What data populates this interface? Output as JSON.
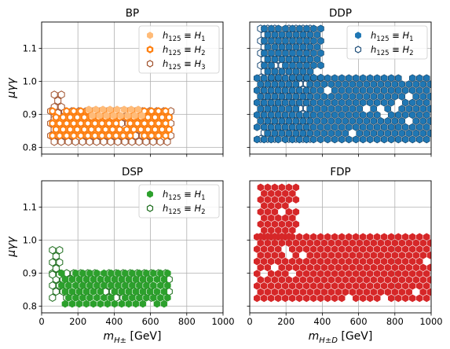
{
  "chart_data": [
    {
      "type": "scatter",
      "title": "BP",
      "xlabel": "",
      "ylabel": "μγγ",
      "xlim": [
        0,
        1000
      ],
      "ylim": [
        0.78,
        1.18
      ],
      "xticks": [
        "0",
        "200",
        "400",
        "600",
        "800",
        "1000"
      ],
      "yticks": [
        "0.8",
        "0.9",
        "1.0",
        "1.1"
      ],
      "grid": true,
      "legend": "top-right",
      "series": [
        {
          "name": "h125 ≡ H1",
          "label_main": "h",
          "label_sub": "125",
          "label_rhs": "H",
          "label_rhs_sub": "1",
          "marker": "filled-hex",
          "color": "#ffbb78",
          "regions": [
            {
              "x": [
                260,
                560
              ],
              "y": [
                0.895,
                0.915
              ]
            }
          ]
        },
        {
          "name": "h125 ≡ H2",
          "label_main": "h",
          "label_sub": "125",
          "label_rhs": "H",
          "label_rhs_sub": "2",
          "marker": "thick-hollow-hex",
          "color": "#ff7f0e",
          "regions": [
            {
              "x": [
                60,
                720
              ],
              "y": [
                0.82,
                0.91
              ]
            }
          ]
        },
        {
          "name": "h125 ≡ H3",
          "label_main": "h",
          "label_sub": "125",
          "label_rhs": "H",
          "label_rhs_sub": "3",
          "marker": "hollow-hex",
          "color": "#a0522d",
          "regions": [
            {
              "x": [
                50,
                720
              ],
              "y": [
                0.8,
                0.91
              ]
            },
            {
              "x": [
                70,
                110
              ],
              "y": [
                0.88,
                0.96
              ]
            }
          ]
        }
      ]
    },
    {
      "type": "scatter",
      "title": "DDP",
      "xlabel": "",
      "ylabel": "",
      "xlim": [
        0,
        1000
      ],
      "ylim": [
        0.78,
        1.18
      ],
      "xticks": [
        "0",
        "200",
        "400",
        "600",
        "800",
        "1000"
      ],
      "yticks": [
        "0.8",
        "0.9",
        "1.0",
        "1.1"
      ],
      "grid": true,
      "legend": "top-right",
      "series": [
        {
          "name": "h125 ≡ H1",
          "label_main": "h",
          "label_sub": "125",
          "label_rhs": "H",
          "label_rhs_sub": "1",
          "marker": "filled-hex",
          "color": "#1f77b4",
          "regions": [
            {
              "x": [
                40,
                1000
              ],
              "y": [
                0.82,
                1.01
              ]
            },
            {
              "x": [
                80,
                400
              ],
              "y": [
                1.0,
                1.16
              ]
            }
          ]
        },
        {
          "name": "h125 ≡ H2",
          "label_main": "h",
          "label_sub": "125",
          "label_rhs": "H",
          "label_rhs_sub": "2",
          "marker": "hollow-hex",
          "color": "#1f4e79",
          "regions": [
            {
              "x": [
                60,
                340
              ],
              "y": [
                0.82,
                1.16
              ]
            }
          ]
        }
      ]
    },
    {
      "type": "scatter",
      "title": "DSP",
      "xlabel": "m",
      "xlabel_sub": "H±",
      "xlabel_unit": "[GeV]",
      "ylabel": "μγγ",
      "xlim": [
        0,
        1000
      ],
      "ylim": [
        0.78,
        1.18
      ],
      "xticks": [
        "0",
        "200",
        "400",
        "600",
        "800",
        "1000"
      ],
      "yticks": [
        "0.8",
        "0.9",
        "1.0",
        "1.1"
      ],
      "grid": true,
      "legend": "top-right",
      "series": [
        {
          "name": "h125 ≡ H1",
          "label_main": "h",
          "label_sub": "125",
          "label_rhs": "H",
          "label_rhs_sub": "1",
          "marker": "filled-hex",
          "color": "#2ca02c",
          "regions": [
            {
              "x": [
                110,
                700
              ],
              "y": [
                0.8,
                0.9
              ]
            }
          ]
        },
        {
          "name": "h125 ≡ H2",
          "label_main": "h",
          "label_sub": "125",
          "label_rhs": "H",
          "label_rhs_sub": "2",
          "marker": "hollow-hex",
          "color": "#1a6b1a",
          "regions": [
            {
              "x": [
                60,
                720
              ],
              "y": [
                0.81,
                0.9
              ]
            },
            {
              "x": [
                60,
                110
              ],
              "y": [
                0.88,
                0.97
              ]
            }
          ]
        }
      ]
    },
    {
      "type": "scatter",
      "title": "FDP",
      "xlabel": "m",
      "xlabel_sub": "H±D",
      "xlabel_unit": "[GeV]",
      "ylabel": "",
      "xlim": [
        0,
        1000
      ],
      "ylim": [
        0.78,
        1.18
      ],
      "xticks": [
        "0",
        "200",
        "400",
        "600",
        "800",
        "1000"
      ],
      "yticks": [
        "0.8",
        "0.9",
        "1.0",
        "1.1"
      ],
      "grid": true,
      "legend": "none",
      "series": [
        {
          "marker": "filled-hex",
          "color": "#d62728",
          "regions": [
            {
              "x": [
                40,
                1000
              ],
              "y": [
                0.82,
                1.01
              ]
            },
            {
              "x": [
                60,
                260
              ],
              "y": [
                1.0,
                1.16
              ]
            }
          ]
        }
      ]
    }
  ]
}
